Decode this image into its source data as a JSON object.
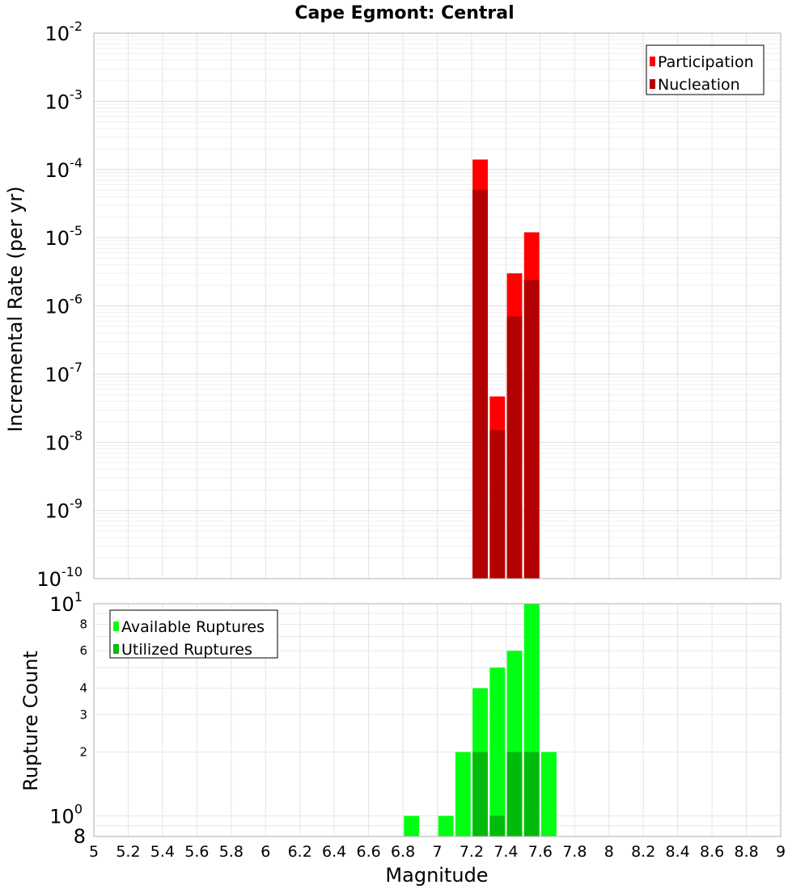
{
  "chart_data": [
    {
      "type": "bar",
      "title": "Cape Egmont: Central",
      "ylabel": "Incremental Rate (per yr)",
      "yscale": "log",
      "ylim": [
        1e-10,
        0.01
      ],
      "xlim": [
        5,
        9
      ],
      "bin_width": 0.1,
      "legend_position": "top-right",
      "series": [
        {
          "name": "Participation",
          "color": "#ff0000",
          "x": [
            7.25,
            7.35,
            7.45,
            7.55
          ],
          "values": [
            0.00014,
            4.7e-08,
            3e-06,
            1.2e-05
          ]
        },
        {
          "name": "Nucleation",
          "color": "#b30000",
          "x": [
            7.25,
            7.35,
            7.45,
            7.55
          ],
          "values": [
            5e-05,
            1.5e-08,
            7e-07,
            2.4e-06
          ]
        }
      ],
      "y_ticks": [
        {
          "base": "10",
          "exp": "-2"
        },
        {
          "base": "10",
          "exp": "-3"
        },
        {
          "base": "10",
          "exp": "-4"
        },
        {
          "base": "10",
          "exp": "-5"
        },
        {
          "base": "10",
          "exp": "-6"
        },
        {
          "base": "10",
          "exp": "-7"
        },
        {
          "base": "10",
          "exp": "-8"
        },
        {
          "base": "10",
          "exp": "-9"
        },
        {
          "base": "10",
          "exp": "-10"
        }
      ]
    },
    {
      "type": "bar",
      "ylabel": "Rupture Count",
      "xlabel": "Magnitude",
      "yscale": "log",
      "ylim": [
        0.8,
        10
      ],
      "xlim": [
        5,
        9
      ],
      "bin_width": 0.1,
      "legend_position": "top-left",
      "series": [
        {
          "name": "Available Ruptures",
          "color": "#00ff12",
          "x": [
            6.85,
            7.05,
            7.15,
            7.25,
            7.35,
            7.45,
            7.55,
            7.65
          ],
          "values": [
            1,
            1,
            2,
            4,
            5,
            6,
            10,
            2
          ]
        },
        {
          "name": "Utilized Ruptures",
          "color": "#00bb0c",
          "x": [
            7.25,
            7.35,
            7.45,
            7.55
          ],
          "values": [
            2,
            1,
            2,
            2
          ]
        }
      ],
      "y_ticks_major": [
        {
          "value": 10,
          "base": "10",
          "exp": "1"
        },
        {
          "value": 1,
          "base": "10",
          "exp": "0"
        }
      ],
      "y_ticks_minor": [
        "8",
        "6",
        "4",
        "3",
        "2"
      ],
      "y_bottom_label": "8",
      "x_ticks": [
        "5",
        "5.2",
        "5.4",
        "5.6",
        "5.8",
        "6",
        "6.2",
        "6.4",
        "6.6",
        "6.8",
        "7",
        "7.2",
        "7.4",
        "7.6",
        "7.8",
        "8",
        "8.2",
        "8.4",
        "8.6",
        "8.8",
        "9"
      ]
    }
  ]
}
